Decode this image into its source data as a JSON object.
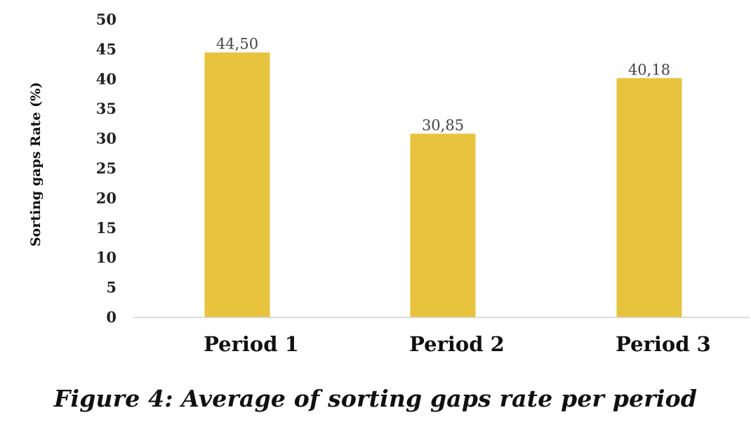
{
  "chart_data": {
    "type": "bar",
    "categories": [
      "Period 1",
      "Period 2",
      "Period 3"
    ],
    "values": [
      44.5,
      30.85,
      40.18
    ],
    "data_labels": [
      "44,50",
      "30,85",
      "40,18"
    ],
    "ylabel": "Sorting gaps Rate  (%)",
    "xlabel": "",
    "ylim": [
      0,
      50
    ],
    "yticks": [
      0,
      5,
      10,
      15,
      20,
      25,
      30,
      35,
      40,
      45,
      50
    ],
    "bar_color": "#E8C33E",
    "grid": false,
    "legend": "none"
  },
  "caption": "Figure 4: Average of sorting gaps rate per period"
}
